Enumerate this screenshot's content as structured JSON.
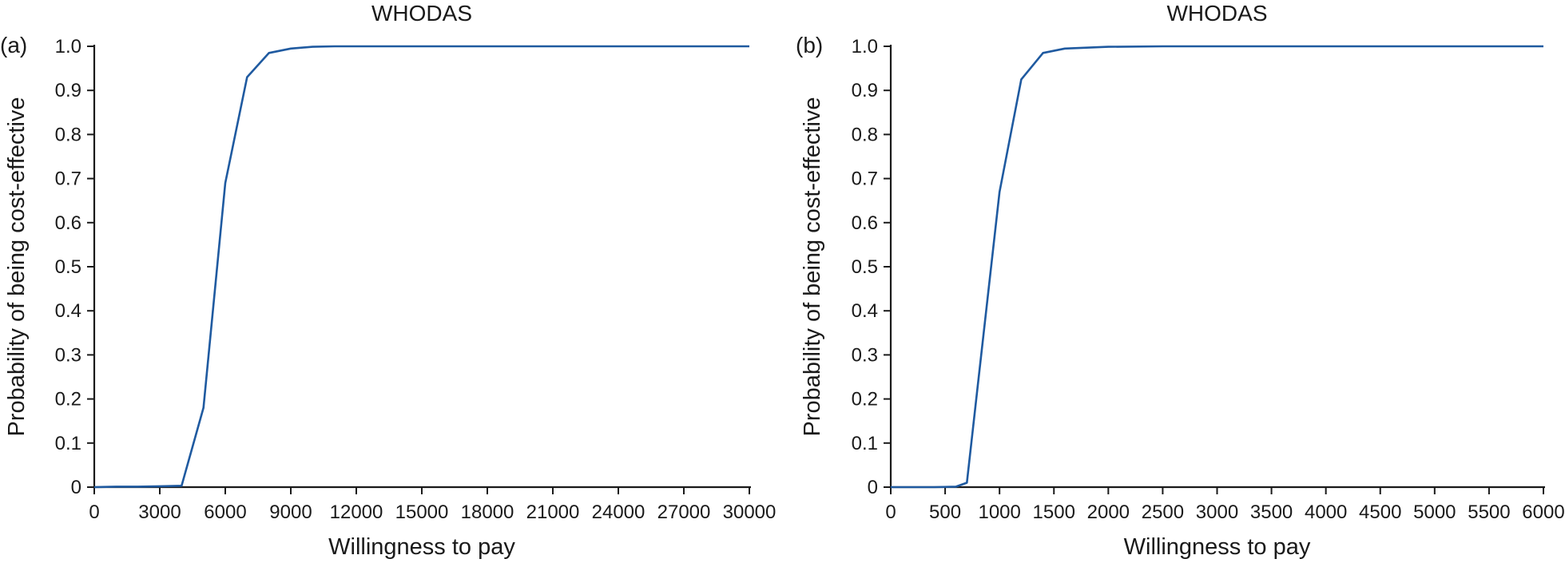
{
  "chart_data": [
    {
      "type": "line",
      "panel_label": "(a)",
      "title": "WHODAS",
      "xlabel": "Willingness to pay",
      "ylabel": "Probability of being cost-effective",
      "xlim": [
        0,
        30000
      ],
      "ylim": [
        0,
        1.0
      ],
      "x_ticks": [
        0,
        3000,
        6000,
        9000,
        12000,
        15000,
        18000,
        21000,
        24000,
        27000,
        30000
      ],
      "x_tick_labels": [
        "0",
        "3000",
        "6000",
        "9000",
        "12000",
        "15000",
        "18000",
        "21000",
        "24000",
        "27000",
        "30000"
      ],
      "y_ticks": [
        0,
        0.1,
        0.2,
        0.3,
        0.4,
        0.5,
        0.6,
        0.7,
        0.8,
        0.9,
        1.0
      ],
      "y_tick_labels": [
        "0",
        "0.1",
        "0.2",
        "0.3",
        "0.4",
        "0.5",
        "0.6",
        "0.7",
        "0.8",
        "0.9",
        "1.0"
      ],
      "grid": false,
      "color": "#1f5aa0",
      "series": [
        {
          "x": [
            0,
            1000,
            2000,
            3000,
            4000,
            5000,
            6000,
            7000,
            8000,
            9000,
            10000,
            11000,
            12000,
            15000,
            18000,
            21000,
            24000,
            27000,
            30000
          ],
          "values": [
            0.0,
            0.001,
            0.001,
            0.002,
            0.003,
            0.18,
            0.69,
            0.93,
            0.985,
            0.995,
            0.999,
            1.0,
            1.0,
            1.0,
            1.0,
            1.0,
            1.0,
            1.0,
            1.0
          ]
        }
      ]
    },
    {
      "type": "line",
      "panel_label": "(b)",
      "title": "WHODAS",
      "xlabel": "Willingness to pay",
      "ylabel": "Probability of being cost-effective",
      "xlim": [
        0,
        6000
      ],
      "ylim": [
        0,
        1.0
      ],
      "x_ticks": [
        0,
        500,
        1000,
        1500,
        2000,
        2500,
        3000,
        3500,
        4000,
        4500,
        5000,
        5500,
        6000
      ],
      "x_tick_labels": [
        "0",
        "500",
        "1000",
        "1500",
        "2000",
        "2500",
        "3000",
        "3500",
        "4000",
        "4500",
        "5000",
        "5500",
        "6000"
      ],
      "y_ticks": [
        0,
        0.1,
        0.2,
        0.3,
        0.4,
        0.5,
        0.6,
        0.7,
        0.8,
        0.9,
        1.0
      ],
      "y_tick_labels": [
        "0",
        "0.1",
        "0.2",
        "0.3",
        "0.4",
        "0.5",
        "0.6",
        "0.7",
        "0.8",
        "0.9",
        "1.0"
      ],
      "grid": false,
      "color": "#1f5aa0",
      "series": [
        {
          "x": [
            0,
            200,
            400,
            600,
            700,
            800,
            1000,
            1200,
            1400,
            1600,
            2000,
            2500,
            3000,
            3500,
            4000,
            4500,
            5000,
            5500,
            6000
          ],
          "values": [
            0.0,
            0.0,
            0.0,
            0.001,
            0.01,
            0.23,
            0.67,
            0.925,
            0.985,
            0.995,
            0.999,
            1.0,
            1.0,
            1.0,
            1.0,
            1.0,
            1.0,
            1.0,
            1.0
          ]
        }
      ]
    }
  ]
}
